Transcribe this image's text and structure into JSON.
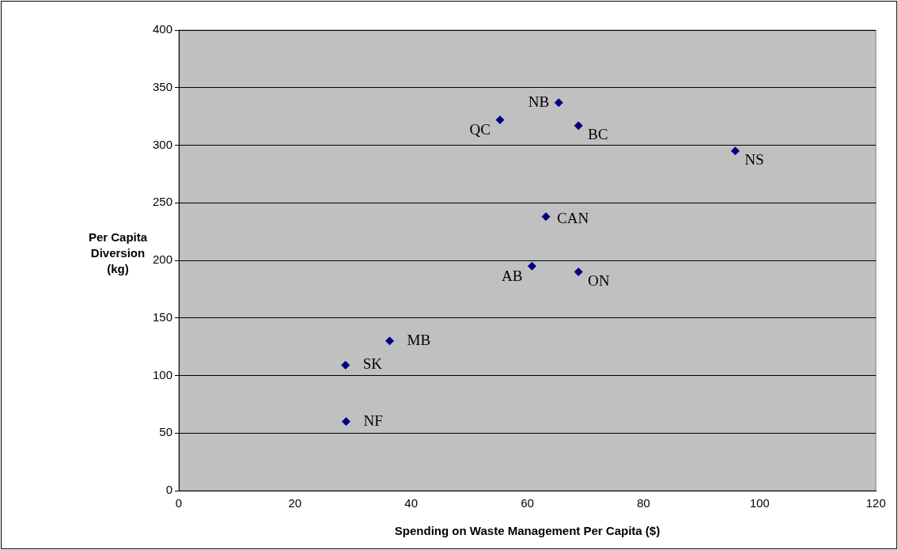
{
  "chart_data": {
    "type": "scatter",
    "xlabel": "Spending on Waste Management Per Capita ($)",
    "ylabel": "Per Capita Diversion (kg)",
    "series": [
      {
        "color": "#000080",
        "x": [
          55.3,
          65.4,
          68.8,
          95.8,
          63.2,
          60.8,
          68.8,
          36.3,
          28.7,
          28.8
        ],
        "values": [
          322,
          337,
          317,
          295,
          238,
          195,
          190,
          130,
          109,
          60
        ]
      }
    ],
    "xlim": [
      0,
      120
    ],
    "xticks": [
      0,
      20,
      40,
      60,
      80,
      100,
      120
    ],
    "ylim": [
      0,
      400
    ],
    "yticks": [
      0,
      50,
      100,
      150,
      200,
      250,
      300,
      350,
      400
    ],
    "grid": "y",
    "legend": false,
    "marker": "diamond",
    "annotations": [
      {
        "text": "QC",
        "x": 55.3,
        "y": 322
      },
      {
        "text": "NB",
        "x": 65.4,
        "y": 337
      },
      {
        "text": "BC",
        "x": 68.8,
        "y": 317
      },
      {
        "text": "NS",
        "x": 95.8,
        "y": 295
      },
      {
        "text": "CAN",
        "x": 63.2,
        "y": 238
      },
      {
        "text": "AB",
        "x": 60.8,
        "y": 195
      },
      {
        "text": "ON",
        "x": 68.8,
        "y": 190
      },
      {
        "text": "MB",
        "x": 36.3,
        "y": 130
      },
      {
        "text": "SK",
        "x": 28.7,
        "y": 109
      },
      {
        "text": "NF",
        "x": 28.8,
        "y": 60
      }
    ]
  }
}
